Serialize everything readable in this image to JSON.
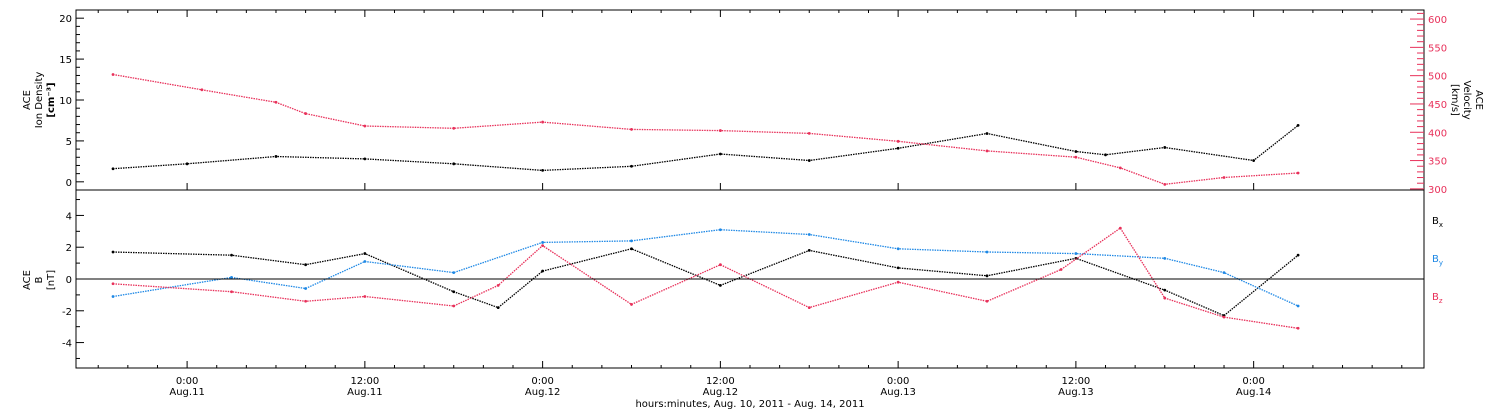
{
  "chart_data": [
    {
      "type": "scatter",
      "panel": "top",
      "ylabel_left": [
        "ACE",
        "Ion Density",
        "[cm⁻³]"
      ],
      "ylabel_right": [
        "ACE",
        "Velocity",
        "[km/s]"
      ],
      "ylim_left": [
        -1,
        21
      ],
      "yticks_left": [
        "0",
        "5",
        "10",
        "15",
        "20"
      ],
      "ylim_right": [
        298,
        616
      ],
      "yticks_right": [
        "300",
        "350",
        "400",
        "450",
        "500",
        "550",
        "600"
      ],
      "colors": {
        "density": "#000000",
        "velocity": "#e8305a"
      },
      "series": [
        {
          "axis": "left",
          "color": "#000000",
          "x": [
            -5,
            0,
            6,
            12,
            18,
            24,
            30,
            36,
            42,
            48,
            54,
            60,
            62,
            66,
            72,
            75
          ],
          "values": [
            1.6,
            2.2,
            3.1,
            2.8,
            2.2,
            1.4,
            1.9,
            3.4,
            2.6,
            4.1,
            5.9,
            3.7,
            3.3,
            4.2,
            2.6,
            6.9
          ]
        },
        {
          "axis": "right",
          "color": "#e8305a",
          "x": [
            -5,
            1,
            6,
            8,
            12,
            18,
            24,
            30,
            36,
            42,
            48,
            54,
            60,
            63,
            66,
            70,
            75
          ],
          "values": [
            502,
            475,
            453,
            433,
            411,
            407,
            418,
            405,
            403,
            398,
            384,
            367,
            356,
            337,
            308,
            320,
            328
          ]
        }
      ]
    },
    {
      "type": "scatter",
      "panel": "bottom",
      "ylabel": [
        "ACE",
        "B",
        "[nT]"
      ],
      "ylim": [
        -5.6,
        5.6
      ],
      "yticks": [
        "-4",
        "-2",
        "0",
        "2",
        "4"
      ],
      "zero_line": true,
      "series": [
        {
          "name": "Bx",
          "color": "#000000",
          "x": [
            -5,
            3,
            8,
            12,
            18,
            21,
            24,
            30,
            36,
            42,
            48,
            54,
            60,
            66,
            70,
            75
          ],
          "values": [
            1.7,
            1.5,
            0.9,
            1.6,
            -0.8,
            -1.8,
            0.5,
            1.9,
            -0.4,
            1.8,
            0.7,
            0.2,
            1.3,
            -0.7,
            -2.3,
            1.5
          ]
        },
        {
          "name": "By",
          "color": "#1e88e5",
          "x": [
            -5,
            3,
            8,
            12,
            18,
            24,
            30,
            36,
            42,
            48,
            54,
            60,
            66,
            70,
            75
          ],
          "values": [
            -1.1,
            0.1,
            -0.6,
            1.1,
            0.4,
            2.3,
            2.4,
            3.1,
            2.8,
            1.9,
            1.7,
            1.6,
            1.3,
            0.4,
            -1.7
          ]
        },
        {
          "name": "Bz",
          "color": "#e8305a",
          "x": [
            -5,
            3,
            8,
            12,
            18,
            21,
            24,
            30,
            36,
            42,
            48,
            54,
            59,
            63,
            66,
            70,
            75
          ],
          "values": [
            -0.3,
            -0.8,
            -1.4,
            -1.1,
            -1.7,
            -0.4,
            2.1,
            -1.6,
            0.9,
            -1.8,
            -0.2,
            -1.4,
            0.6,
            3.2,
            -1.2,
            -2.4,
            -3.1
          ]
        }
      ]
    }
  ],
  "time_axis": {
    "ticks_hours": [
      0,
      12,
      24,
      36,
      48,
      60,
      72
    ],
    "ticks_time": [
      "0:00",
      "12:00",
      "0:00",
      "12:00",
      "0:00",
      "12:00",
      "0:00"
    ],
    "ticks_date": [
      "Aug.11",
      "Aug.11",
      "Aug.12",
      "Aug.12",
      "Aug.13",
      "Aug.13",
      "Aug.14"
    ],
    "xlabel": "hours:minutes, Aug. 10, 2011 - Aug. 14, 2011"
  },
  "legend": {
    "bx": {
      "main": "B",
      "sub": "x",
      "color": "#000000"
    },
    "by": {
      "main": "B",
      "sub": "y",
      "color": "#1e88e5"
    },
    "bz": {
      "main": "B",
      "sub": "z",
      "color": "#e8305a"
    }
  }
}
